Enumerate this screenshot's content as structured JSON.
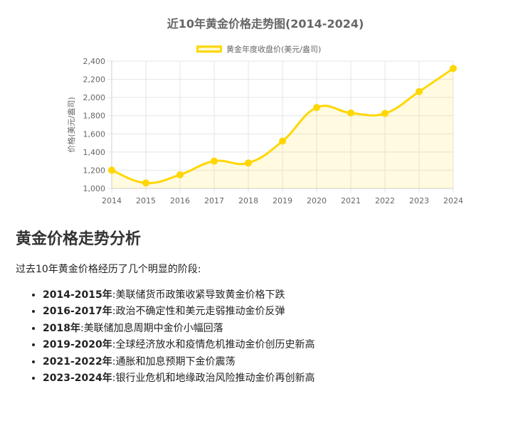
{
  "chart_data": {
    "type": "line",
    "title": "近10年黄金价格走势图(2014-2024)",
    "legend": "黄金年度收盘价(美元/盎司)",
    "legend_position": "top-center",
    "ylabel": "价格(美元/盎司)",
    "xlabel": "",
    "categories": [
      "2014",
      "2015",
      "2016",
      "2017",
      "2018",
      "2019",
      "2020",
      "2021",
      "2022",
      "2023",
      "2024"
    ],
    "values": [
      1200,
      1060,
      1150,
      1300,
      1280,
      1520,
      1890,
      1830,
      1825,
      2065,
      2320
    ],
    "ylim": [
      1000,
      2400
    ],
    "yticks": [
      "1,000",
      "1,200",
      "1,400",
      "1,600",
      "1,800",
      "2,000",
      "2,200",
      "2,400"
    ],
    "grid": true,
    "fill": true,
    "line_color": "#FFD700",
    "fill_color": "rgba(255,215,0,0.12)"
  },
  "analysis": {
    "heading": "黄金价格走势分析",
    "intro": "过去10年黄金价格经历了几个明显的阶段:",
    "items": [
      {
        "period": "2014-2015年",
        "sep": ":",
        "text": "美联储货币政策收紧导致黄金价格下跌"
      },
      {
        "period": "2016-2017年",
        "sep": ":",
        "text": "政治不确定性和美元走弱推动金价反弹"
      },
      {
        "period": "2018年",
        "sep": ":",
        "text": "美联储加息周期中金价小幅回落"
      },
      {
        "period": "2019-2020年",
        "sep": ":",
        "text": "全球经济放水和疫情危机推动金价创历史新高"
      },
      {
        "period": "2021-2022年",
        "sep": ":",
        "text": "通胀和加息预期下金价震荡"
      },
      {
        "period": "2023-2024年",
        "sep": ":",
        "text": "银行业危机和地缘政治风险推动金价再创新高"
      }
    ]
  }
}
